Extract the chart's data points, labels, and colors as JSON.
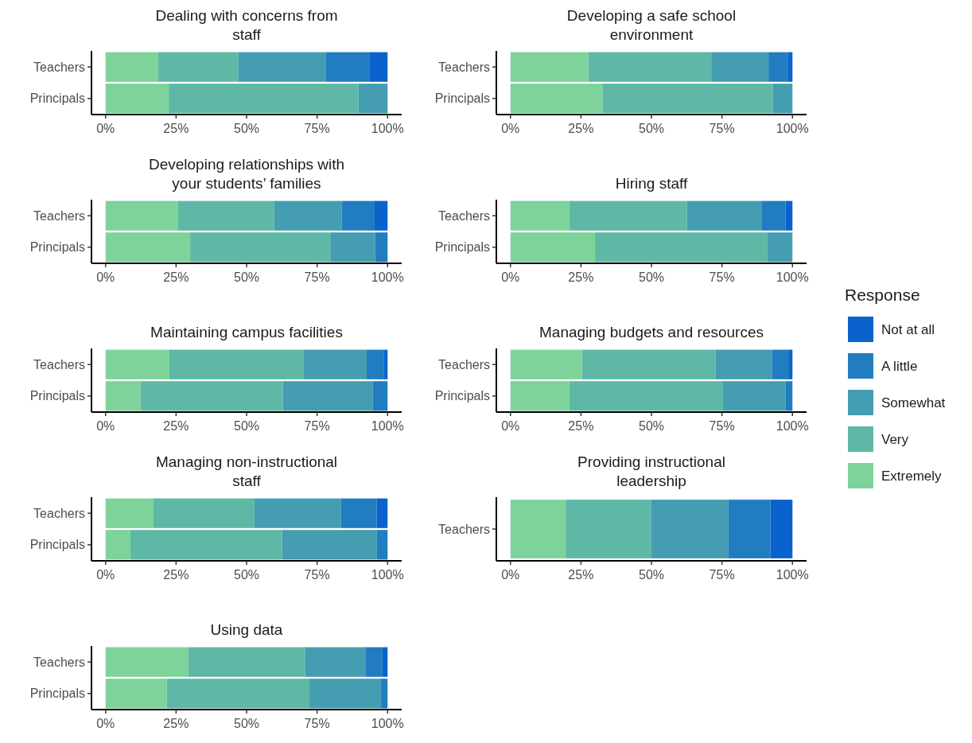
{
  "chart_data": [
    {
      "type": "bar",
      "orientation": "horizontal",
      "stacked": true,
      "title": "Dealing with concerns from staff",
      "categories": [
        "Teachers",
        "Principals"
      ],
      "xlim": [
        -5,
        105
      ],
      "xticks": [
        {
          "value": 0,
          "label": "0%"
        },
        {
          "value": 25,
          "label": "25%"
        },
        {
          "value": 50,
          "label": "50%"
        },
        {
          "value": 75,
          "label": "75%"
        },
        {
          "value": 100,
          "label": "100%"
        }
      ],
      "legend": "right",
      "legend_title": "Response",
      "series": [
        {
          "name": "Extremely",
          "color": "#7dd39a",
          "values": [
            18.7,
            22.4
          ]
        },
        {
          "name": "Very",
          "color": "#5fb8a6",
          "values": [
            28.3,
            67.3
          ]
        },
        {
          "name": "Somewhat",
          "color": "#449db0",
          "values": [
            31,
            10.3
          ]
        },
        {
          "name": "A little",
          "color": "#217dc0",
          "values": [
            15.5,
            0
          ]
        },
        {
          "name": "Not at all",
          "color": "#0a63cc",
          "values": [
            6.5,
            0
          ]
        }
      ]
    },
    {
      "type": "bar",
      "orientation": "horizontal",
      "stacked": true,
      "title": "Developing a safe school environment",
      "categories": [
        "Teachers",
        "Principals"
      ],
      "xlim": [
        -5,
        105
      ],
      "xticks": [
        {
          "value": 0,
          "label": "0%"
        },
        {
          "value": 25,
          "label": "25%"
        },
        {
          "value": 50,
          "label": "50%"
        },
        {
          "value": 75,
          "label": "75%"
        },
        {
          "value": 100,
          "label": "100%"
        }
      ],
      "series": [
        {
          "color": "#7dd39a",
          "values": [
            27.6,
            32.6
          ]
        },
        {
          "color": "#5fb8a6",
          "values": [
            43.6,
            60.4
          ]
        },
        {
          "color": "#449db0",
          "values": [
            20.3,
            7
          ]
        },
        {
          "color": "#217dc0",
          "values": [
            6.8,
            0
          ]
        },
        {
          "color": "#0a63cc",
          "values": [
            1.7,
            0
          ]
        }
      ]
    },
    {
      "type": "bar",
      "orientation": "horizontal",
      "stacked": true,
      "title": "Developing relationships with your students’ families",
      "categories": [
        "Teachers",
        "Principals"
      ],
      "xlim": [
        -5,
        105
      ],
      "xticks": [
        {
          "value": 0,
          "label": "0%"
        },
        {
          "value": 25,
          "label": "25%"
        },
        {
          "value": 50,
          "label": "50%"
        },
        {
          "value": 75,
          "label": "75%"
        },
        {
          "value": 100,
          "label": "100%"
        }
      ],
      "series": [
        {
          "color": "#7dd39a",
          "values": [
            25.7,
            30
          ]
        },
        {
          "color": "#5fb8a6",
          "values": [
            34,
            49.9
          ]
        },
        {
          "color": "#449db0",
          "values": [
            24,
            15.7
          ]
        },
        {
          "color": "#217dc0",
          "values": [
            11.7,
            4.4
          ]
        },
        {
          "color": "#0a63cc",
          "values": [
            4.6,
            0
          ]
        }
      ]
    },
    {
      "type": "bar",
      "orientation": "horizontal",
      "stacked": true,
      "title": "Hiring staff",
      "categories": [
        "Teachers",
        "Principals"
      ],
      "xlim": [
        -5,
        105
      ],
      "xticks": [
        {
          "value": 0,
          "label": "0%"
        },
        {
          "value": 25,
          "label": "25%"
        },
        {
          "value": 50,
          "label": "50%"
        },
        {
          "value": 75,
          "label": "75%"
        },
        {
          "value": 100,
          "label": "100%"
        }
      ],
      "series": [
        {
          "color": "#7dd39a",
          "values": [
            20.8,
            30
          ]
        },
        {
          "color": "#5fb8a6",
          "values": [
            41.8,
            61.2
          ]
        },
        {
          "color": "#449db0",
          "values": [
            26.4,
            8.8
          ]
        },
        {
          "color": "#217dc0",
          "values": [
            8.5,
            0
          ]
        },
        {
          "color": "#0a63cc",
          "values": [
            2.5,
            0
          ]
        }
      ]
    },
    {
      "type": "bar",
      "orientation": "horizontal",
      "stacked": true,
      "title": "Maintaining campus facilities",
      "categories": [
        "Teachers",
        "Principals"
      ],
      "xlim": [
        -5,
        105
      ],
      "xticks": [
        {
          "value": 0,
          "label": "0%"
        },
        {
          "value": 25,
          "label": "25%"
        },
        {
          "value": 50,
          "label": "50%"
        },
        {
          "value": 75,
          "label": "75%"
        },
        {
          "value": 100,
          "label": "100%"
        }
      ],
      "series": [
        {
          "color": "#7dd39a",
          "values": [
            22.6,
            12.4
          ]
        },
        {
          "color": "#5fb8a6",
          "values": [
            47.7,
            50.5
          ]
        },
        {
          "color": "#449db0",
          "values": [
            22.3,
            31.8
          ]
        },
        {
          "color": "#217dc0",
          "values": [
            6,
            5.3
          ]
        },
        {
          "color": "#0a63cc",
          "values": [
            1.4,
            0
          ]
        }
      ]
    },
    {
      "type": "bar",
      "orientation": "horizontal",
      "stacked": true,
      "title": "Managing budgets and resources",
      "categories": [
        "Teachers",
        "Principals"
      ],
      "xlim": [
        -5,
        105
      ],
      "xticks": [
        {
          "value": 0,
          "label": "0%"
        },
        {
          "value": 25,
          "label": "25%"
        },
        {
          "value": 50,
          "label": "50%"
        },
        {
          "value": 75,
          "label": "75%"
        },
        {
          "value": 100,
          "label": "100%"
        }
      ],
      "series": [
        {
          "color": "#7dd39a",
          "values": [
            25.4,
            20.8
          ]
        },
        {
          "color": "#5fb8a6",
          "values": [
            47.4,
            54.6
          ]
        },
        {
          "color": "#449db0",
          "values": [
            19.9,
            22.1
          ]
        },
        {
          "color": "#217dc0",
          "values": [
            6.1,
            2.5
          ]
        },
        {
          "color": "#0a63cc",
          "values": [
            1.2,
            0
          ]
        }
      ]
    },
    {
      "type": "bar",
      "orientation": "horizontal",
      "stacked": true,
      "title": "Managing non-instructional staff",
      "categories": [
        "Teachers",
        "Principals"
      ],
      "xlim": [
        -5,
        105
      ],
      "xticks": [
        {
          "value": 0,
          "label": "0%"
        },
        {
          "value": 25,
          "label": "25%"
        },
        {
          "value": 50,
          "label": "50%"
        },
        {
          "value": 75,
          "label": "75%"
        },
        {
          "value": 100,
          "label": "100%"
        }
      ],
      "series": [
        {
          "color": "#7dd39a",
          "values": [
            17,
            8.8
          ]
        },
        {
          "color": "#5fb8a6",
          "values": [
            35.8,
            53.8
          ]
        },
        {
          "color": "#449db0",
          "values": [
            30.7,
            33.6
          ]
        },
        {
          "color": "#217dc0",
          "values": [
            12.6,
            3.8
          ]
        },
        {
          "color": "#0a63cc",
          "values": [
            3.9,
            0
          ]
        }
      ]
    },
    {
      "type": "bar",
      "orientation": "horizontal",
      "stacked": true,
      "title": "Providing instructional leadership",
      "categories": [
        "Teachers"
      ],
      "xlim": [
        -5,
        105
      ],
      "xticks": [
        {
          "value": 0,
          "label": "0%"
        },
        {
          "value": 25,
          "label": "25%"
        },
        {
          "value": 50,
          "label": "50%"
        },
        {
          "value": 75,
          "label": "75%"
        },
        {
          "value": 100,
          "label": "100%"
        }
      ],
      "series": [
        {
          "color": "#7dd39a",
          "values": [
            19.6
          ]
        },
        {
          "color": "#5fb8a6",
          "values": [
            30.2
          ]
        },
        {
          "color": "#449db0",
          "values": [
            27.4
          ]
        },
        {
          "color": "#217dc0",
          "values": [
            15
          ]
        },
        {
          "color": "#0a63cc",
          "values": [
            7.8
          ]
        }
      ]
    },
    {
      "type": "bar",
      "orientation": "horizontal",
      "stacked": true,
      "title": "Using data",
      "categories": [
        "Teachers",
        "Principals"
      ],
      "xlim": [
        -5,
        105
      ],
      "xticks": [
        {
          "value": 0,
          "label": "0%"
        },
        {
          "value": 25,
          "label": "25%"
        },
        {
          "value": 50,
          "label": "50%"
        },
        {
          "value": 75,
          "label": "75%"
        },
        {
          "value": 100,
          "label": "100%"
        }
      ],
      "series": [
        {
          "color": "#7dd39a",
          "values": [
            29.3,
            21.7
          ]
        },
        {
          "color": "#5fb8a6",
          "values": [
            41.4,
            50.6
          ]
        },
        {
          "color": "#449db0",
          "values": [
            21.6,
            25.4
          ]
        },
        {
          "color": "#217dc0",
          "values": [
            5.9,
            2.3
          ]
        },
        {
          "color": "#0a63cc",
          "values": [
            1.8,
            0
          ]
        }
      ]
    }
  ]
}
